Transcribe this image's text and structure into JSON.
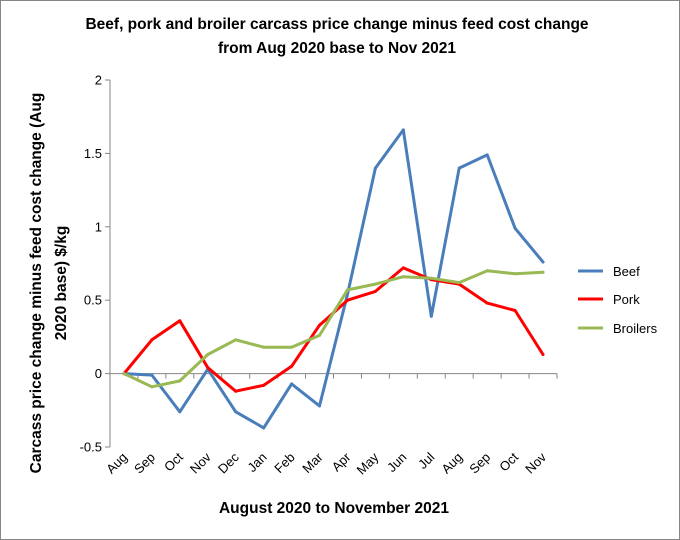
{
  "chart_data": {
    "type": "line",
    "title_lines": [
      "Beef, pork and broiler carcass price change minus feed cost change",
      "from Aug 2020 base to Nov 2021"
    ],
    "xlabel": "August 2020 to November 2021",
    "ylabel_lines": [
      "Carcass price change minus feed cost change  (Aug",
      "2020 base) $/kg"
    ],
    "categories": [
      "Aug",
      "Sep",
      "Oct",
      "Nov",
      "Dec",
      "Jan",
      "Feb",
      "Mar",
      "Apr",
      "May",
      "Jun",
      "Jul",
      "Aug",
      "Sep",
      "Oct",
      "Nov"
    ],
    "ylim": [
      -0.5,
      2
    ],
    "yticks": [
      -0.5,
      0,
      0.5,
      1,
      1.5,
      2
    ],
    "ytick_labels": [
      "-0.5",
      "0",
      "0.5",
      "1",
      "1.5",
      "2"
    ],
    "grid": false,
    "legend_position": "right",
    "series": [
      {
        "name": "Beef",
        "color": "#4a7ebb",
        "values": [
          0,
          -0.01,
          -0.26,
          0.03,
          -0.26,
          -0.37,
          -0.07,
          -0.22,
          0.54,
          1.4,
          1.66,
          0.39,
          1.4,
          1.49,
          0.99,
          0.76
        ]
      },
      {
        "name": "Pork",
        "color": "#ff0000",
        "values": [
          0,
          0.23,
          0.36,
          0.04,
          -0.12,
          -0.08,
          0.05,
          0.33,
          0.5,
          0.56,
          0.72,
          0.64,
          0.61,
          0.48,
          0.43,
          0.13
        ]
      },
      {
        "name": "Broilers",
        "color": "#98b954",
        "values": [
          0,
          -0.09,
          -0.05,
          0.13,
          0.23,
          0.18,
          0.18,
          0.26,
          0.57,
          0.61,
          0.66,
          0.65,
          0.62,
          0.7,
          0.68,
          0.69
        ]
      }
    ]
  }
}
